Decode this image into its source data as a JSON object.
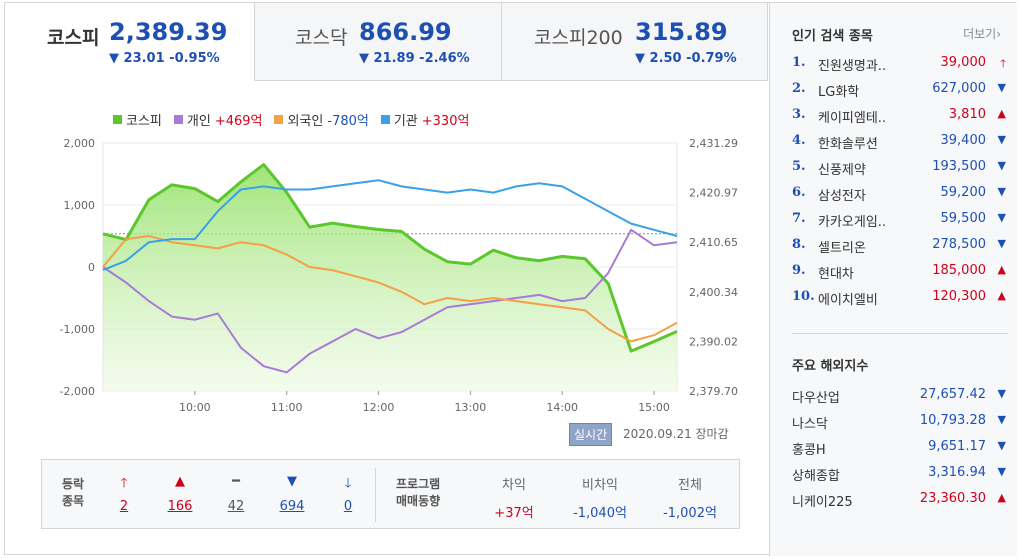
{
  "tabs": [
    {
      "name": "코스피",
      "value": "2,389.39",
      "change": "▼ 23.01 -0.95%"
    },
    {
      "name": "코스닥",
      "value": "866.99",
      "change": "▼ 21.89 -2.46%"
    },
    {
      "name": "코스피200",
      "value": "315.89",
      "change": "▼ 2.50 -0.79%"
    }
  ],
  "legend": {
    "kospi": "코스피",
    "individual": "개인",
    "individual_val": "+469억",
    "foreign": "외국인",
    "foreign_val": "-780억",
    "institution": "기관",
    "institution_val": "+330억"
  },
  "status": {
    "realtime": "실시간",
    "date": "2020.09.21 장마감"
  },
  "breadth": {
    "label_line1": "등락",
    "label_line2": "종목",
    "counts": [
      "2",
      "166",
      "42",
      "694",
      "0"
    ]
  },
  "program": {
    "label_line1": "프로그램",
    "label_line2": "매매동향",
    "headers": [
      "차익",
      "비차익",
      "전체"
    ],
    "values": [
      "+37억",
      "-1,040억",
      "-1,002억"
    ]
  },
  "popular": {
    "title": "인기 검색 종목",
    "more": "더보기",
    "items": [
      {
        "rank": "1.",
        "name": "진원생명과..",
        "price": "39,000",
        "dir": "up-limit"
      },
      {
        "rank": "2.",
        "name": "LG화학",
        "price": "627,000",
        "dir": "down"
      },
      {
        "rank": "3.",
        "name": "케이피엠테..",
        "price": "3,810",
        "dir": "up"
      },
      {
        "rank": "4.",
        "name": "한화솔루션",
        "price": "39,400",
        "dir": "down"
      },
      {
        "rank": "5.",
        "name": "신풍제약",
        "price": "193,500",
        "dir": "down"
      },
      {
        "rank": "6.",
        "name": "삼성전자",
        "price": "59,200",
        "dir": "down"
      },
      {
        "rank": "7.",
        "name": "카카오게임..",
        "price": "59,500",
        "dir": "down"
      },
      {
        "rank": "8.",
        "name": "셀트리온",
        "price": "278,500",
        "dir": "down"
      },
      {
        "rank": "9.",
        "name": "현대차",
        "price": "185,000",
        "dir": "up"
      },
      {
        "rank": "10.",
        "name": "에이치엘비",
        "price": "120,300",
        "dir": "up"
      }
    ]
  },
  "overseas": {
    "title": "주요 해외지수",
    "items": [
      {
        "name": "다우산업",
        "price": "27,657.42",
        "dir": "down"
      },
      {
        "name": "나스닥",
        "price": "10,793.28",
        "dir": "down"
      },
      {
        "name": "홍콩H",
        "price": "9,651.17",
        "dir": "down"
      },
      {
        "name": "상해종합",
        "price": "3,316.94",
        "dir": "down"
      },
      {
        "name": "니케이225",
        "price": "23,360.30",
        "dir": "up"
      }
    ]
  },
  "colors": {
    "kospi": "#5bc72d",
    "individual": "#a87bd6",
    "foreign": "#f4a046",
    "institution": "#3aa0e8",
    "up": "#d0021b",
    "down": "#1e50b4"
  },
  "chart_data": {
    "type": "line",
    "x_ticks": [
      "10:00",
      "11:00",
      "12:00",
      "13:00",
      "14:00",
      "15:00"
    ],
    "left_axis": {
      "ticks": [
        "2,000",
        "1,000",
        "0",
        "-1,000",
        "-2,000"
      ],
      "ylim": [
        -2000,
        2000
      ]
    },
    "right_axis": {
      "ticks": [
        "2,431.29",
        "2,420.97",
        "2,410.65",
        "2,400.34",
        "2,390.02",
        "2,379.70"
      ],
      "ylim": [
        2379.7,
        2431.29
      ]
    },
    "reference_line": 2412.4,
    "x": [
      0,
      0.25,
      0.5,
      0.75,
      1,
      1.25,
      1.5,
      1.75,
      2,
      2.25,
      2.5,
      2.75,
      3,
      3.25,
      3.5,
      3.75,
      4,
      4.25,
      4.5,
      4.75,
      5,
      5.25,
      5.5,
      5.75,
      6,
      6.25
    ],
    "series": [
      {
        "name": "코스피",
        "axis": "right",
        "values": [
          2412.4,
          2411.2,
          2419.5,
          2422.6,
          2421.8,
          2419.1,
          2423.2,
          2426.8,
          2421.0,
          2413.8,
          2414.6,
          2413.9,
          2413.3,
          2412.9,
          2409.2,
          2406.6,
          2406.1,
          2409.0,
          2407.4,
          2406.8,
          2407.7,
          2407.2,
          2402.1,
          2388.0,
          2390.0,
          2392.1
        ]
      },
      {
        "name": "개인",
        "axis": "left",
        "values": [
          0,
          -250,
          -550,
          -800,
          -850,
          -750,
          -1300,
          -1600,
          -1700,
          -1400,
          -1200,
          -1000,
          -1150,
          -1050,
          -850,
          -650,
          -600,
          -550,
          -500,
          -450,
          -550,
          -500,
          -100,
          600,
          350,
          400
        ]
      },
      {
        "name": "외국인",
        "axis": "left",
        "values": [
          0,
          450,
          500,
          400,
          350,
          300,
          400,
          350,
          200,
          0,
          -50,
          -150,
          -250,
          -400,
          -600,
          -500,
          -550,
          -500,
          -550,
          -600,
          -650,
          -700,
          -1000,
          -1200,
          -1100,
          -900
        ]
      },
      {
        "name": "기관",
        "axis": "left",
        "values": [
          -50,
          100,
          400,
          450,
          450,
          900,
          1250,
          1300,
          1250,
          1250,
          1300,
          1350,
          1400,
          1300,
          1250,
          1200,
          1250,
          1200,
          1300,
          1350,
          1300,
          1100,
          900,
          700,
          600,
          500
        ]
      }
    ]
  }
}
